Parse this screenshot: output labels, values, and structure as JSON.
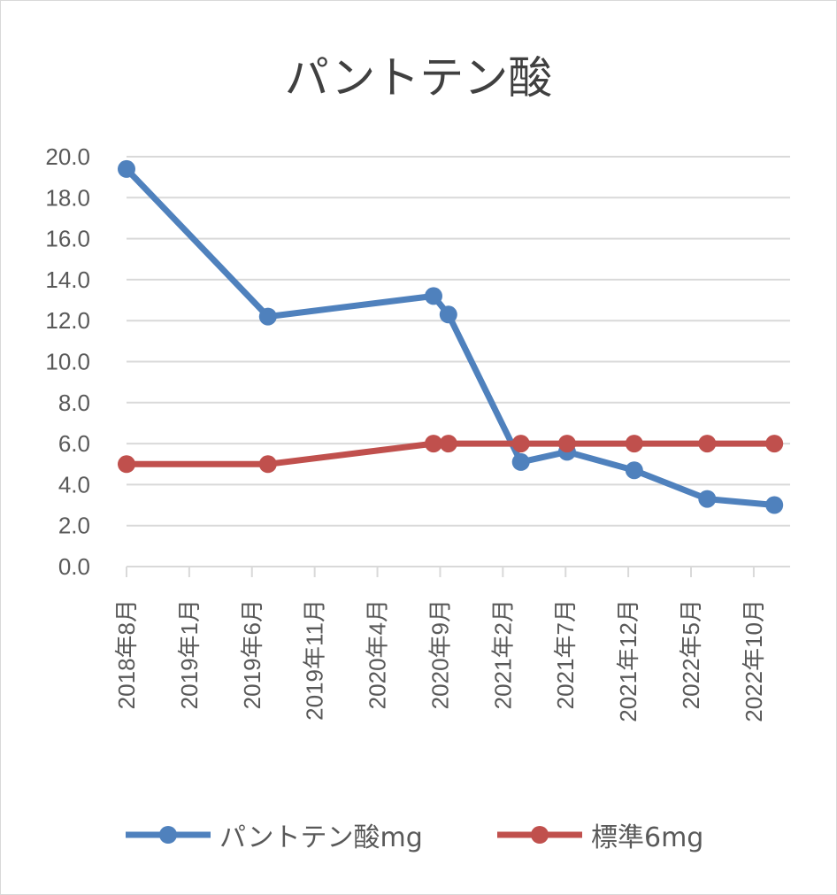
{
  "chart_data": {
    "type": "line",
    "title": "パントテン酸",
    "x_ticks": [
      "2018年8月",
      "2019年1月",
      "2019年6月",
      "2019年11月",
      "2020年4月",
      "2020年9月",
      "2021年2月",
      "2021年7月",
      "2021年12月",
      "2022年5月",
      "2022年10月"
    ],
    "y_ticks": [
      "0.0",
      "2.0",
      "4.0",
      "6.0",
      "8.0",
      "10.0",
      "12.0",
      "14.0",
      "16.0",
      "18.0",
      "20.0"
    ],
    "ylim": [
      0,
      20
    ],
    "grid": true,
    "legend_position": "bottom",
    "series": [
      {
        "name": "パントテン酸mg",
        "color": "#4f81bd",
        "x": [
          "2018-08-01",
          "2019-07-10",
          "2020-08-15",
          "2020-09-20",
          "2021-03-15",
          "2021-07-05",
          "2021-12-15",
          "2022-06-10",
          "2022-11-20"
        ],
        "values": [
          19.4,
          12.2,
          13.2,
          12.3,
          5.1,
          5.6,
          4.7,
          3.3,
          3.0
        ]
      },
      {
        "name": "標準6mg",
        "color": "#c0504d",
        "x": [
          "2018-08-01",
          "2019-07-10",
          "2020-08-15",
          "2020-09-20",
          "2021-03-15",
          "2021-07-05",
          "2021-12-15",
          "2022-06-10",
          "2022-11-20"
        ],
        "values": [
          5.0,
          5.0,
          6.0,
          6.0,
          6.0,
          6.0,
          6.0,
          6.0,
          6.0
        ]
      }
    ]
  }
}
